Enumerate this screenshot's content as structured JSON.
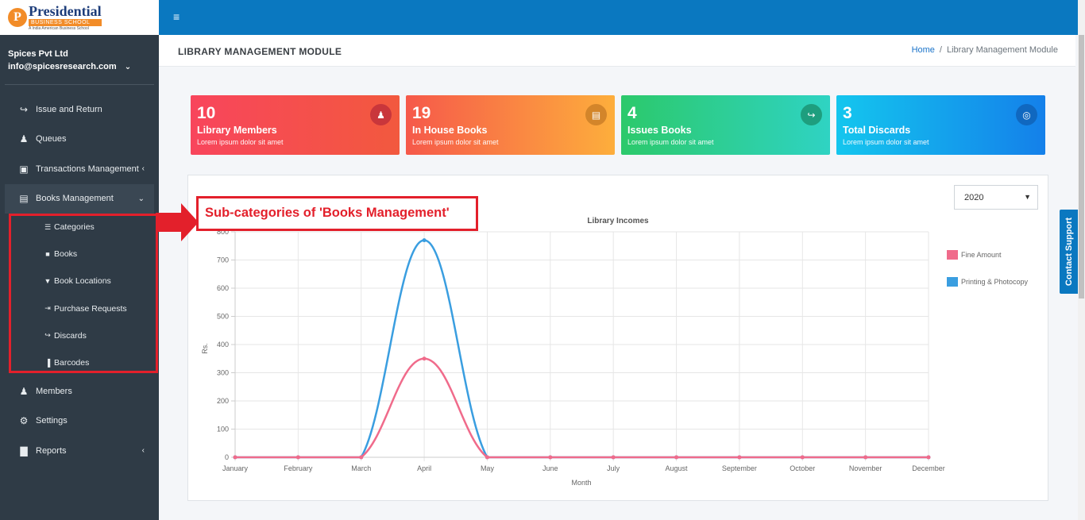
{
  "brand": {
    "logo_letter": "P",
    "title": "Presidential",
    "subtitle": "BUSINESS SCHOOL",
    "tagline": "A India American Business School"
  },
  "user": {
    "company": "Spices Pvt Ltd",
    "email": "info@spicesresearch.com"
  },
  "sidebar": {
    "items": [
      {
        "label": "Issue and Return",
        "icon": "sign-out-icon"
      },
      {
        "label": "Queues",
        "icon": "users-icon"
      },
      {
        "label": "Transactions Management",
        "icon": "money-icon"
      },
      {
        "label": "Books Management",
        "icon": "book-icon"
      },
      {
        "label": "Members",
        "icon": "users-icon"
      },
      {
        "label": "Settings",
        "icon": "gear-icon"
      },
      {
        "label": "Reports",
        "icon": "bar-chart-icon"
      }
    ],
    "books_submenu": [
      {
        "label": "Categories",
        "icon": "list-icon"
      },
      {
        "label": "Books",
        "icon": "book-icon"
      },
      {
        "label": "Book Locations",
        "icon": "map-marker-icon"
      },
      {
        "label": "Purchase Requests",
        "icon": "sign-in-icon"
      },
      {
        "label": "Discards",
        "icon": "sign-out-icon"
      },
      {
        "label": "Barcodes",
        "icon": "barcode-icon"
      }
    ]
  },
  "header": {
    "title": "LIBRARY MANAGEMENT MODULE",
    "breadcrumb_home": "Home",
    "breadcrumb_separator": "/",
    "breadcrumb_current": "Library Management Module"
  },
  "cards": [
    {
      "value": "10",
      "label": "Library Members",
      "desc": "Lorem ipsum dolor sit amet"
    },
    {
      "value": "19",
      "label": "In House Books",
      "desc": "Lorem ipsum dolor sit amet"
    },
    {
      "value": "4",
      "label": "Issues Books",
      "desc": "Lorem ipsum dolor sit amet"
    },
    {
      "value": "3",
      "label": "Total Discards",
      "desc": "Lorem ipsum dolor sit amet"
    }
  ],
  "year_select": {
    "value": "2020"
  },
  "annotation": {
    "text": "Sub-categories of 'Books Management'"
  },
  "contact_support": "Contact Support",
  "colors": {
    "topbar": "#0a78c0",
    "sidebar": "#2f3b46",
    "annotation": "#e3202b",
    "fine": "#f06b8b",
    "printing": "#3a9ee0"
  },
  "chart_data": {
    "type": "line",
    "title": "Library Incomes",
    "xlabel": "Month",
    "ylabel": "Rs.",
    "categories": [
      "January",
      "February",
      "March",
      "April",
      "May",
      "June",
      "July",
      "August",
      "September",
      "October",
      "November",
      "December"
    ],
    "ylim": [
      0,
      800
    ],
    "yticks": [
      0,
      100,
      200,
      300,
      400,
      500,
      600,
      700,
      800
    ],
    "grid": true,
    "legend": "right",
    "series": [
      {
        "name": "Fine Amount",
        "color": "#f06b8b",
        "values": [
          0,
          0,
          0,
          350,
          0,
          0,
          0,
          0,
          0,
          0,
          0,
          0
        ]
      },
      {
        "name": "Printing & Photocopy",
        "color": "#3a9ee0",
        "values": [
          0,
          0,
          0,
          770,
          0,
          0,
          0,
          0,
          0,
          0,
          0,
          0
        ]
      }
    ]
  }
}
